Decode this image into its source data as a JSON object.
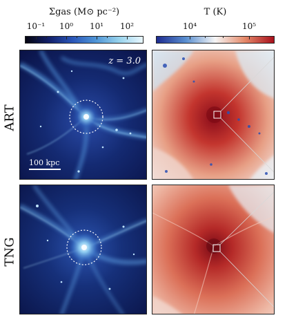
{
  "colorbars": {
    "gas": {
      "title": "Σgas (M⊙ pc⁻²)",
      "ticks": [
        "10⁻¹",
        "10⁰",
        "10¹",
        "10²"
      ],
      "colormap": [
        "#050510",
        "#12206a",
        "#2a56b8",
        "#4f95d6",
        "#98d3ec",
        "#eaf8ff"
      ]
    },
    "temperature": {
      "title": "T (K)",
      "ticks": [
        "10⁴",
        "10⁵"
      ],
      "colormap": [
        "#1d2b8f",
        "#5a8fd0",
        "#f6f6f6",
        "#e58a6a",
        "#a8101c"
      ]
    }
  },
  "rows": [
    {
      "label": "ART"
    },
    {
      "label": "TNG"
    }
  ],
  "annotations": {
    "redshift": "z = 3.0",
    "scale_label": "100 kpc"
  }
}
